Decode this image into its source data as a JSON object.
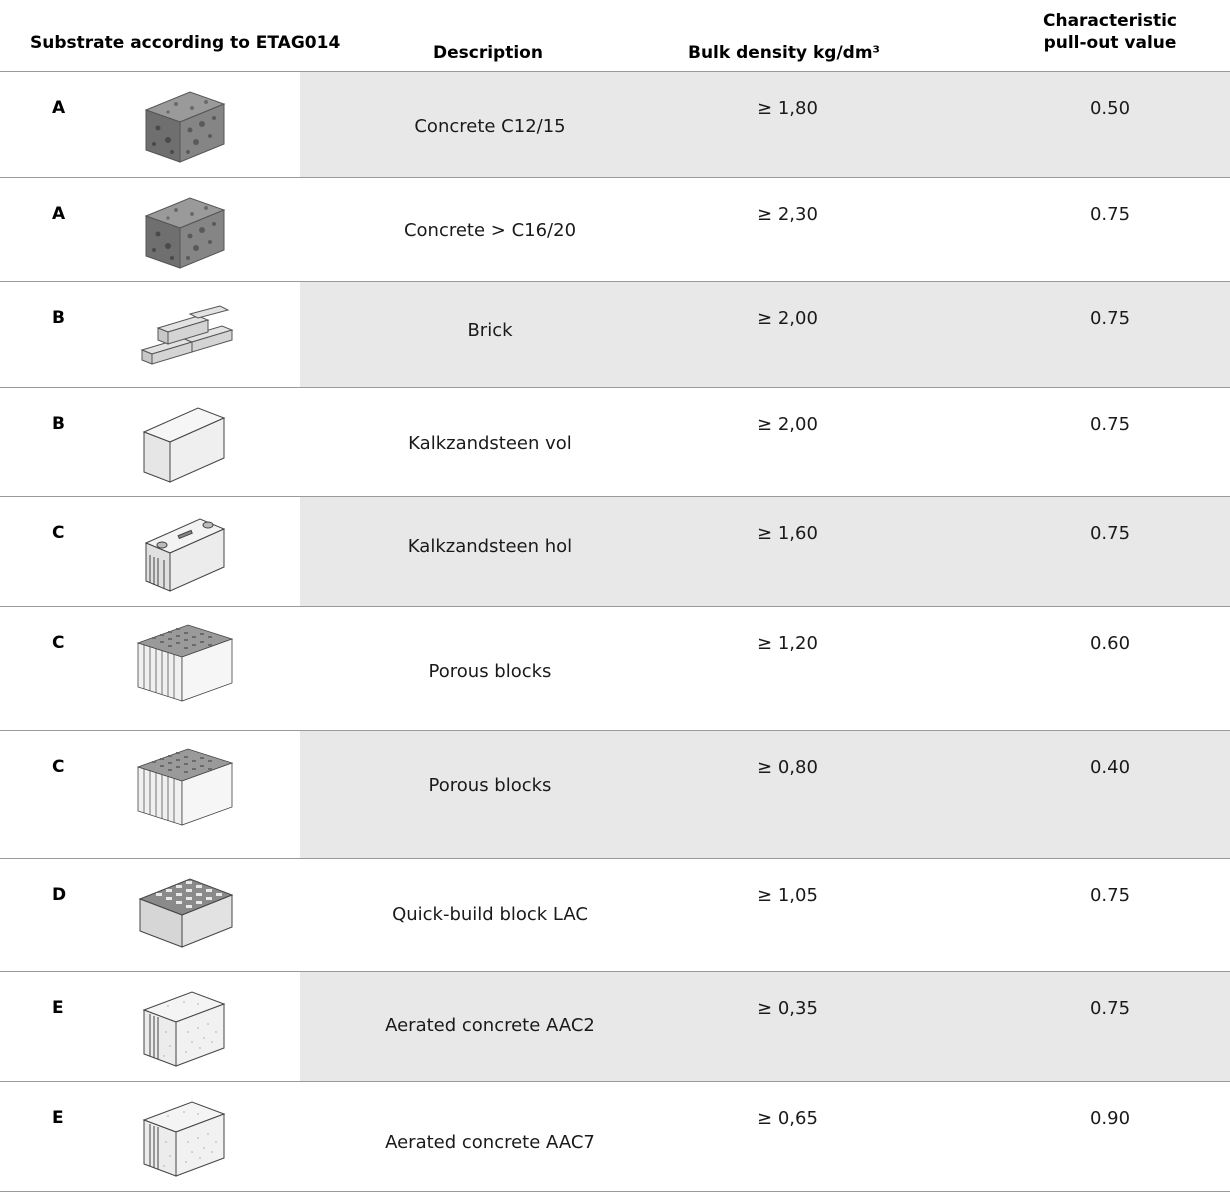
{
  "header": {
    "substrate": "Substrate according to ETAG014",
    "description": "Description",
    "bulk_density": "Bulk density kg/dm³",
    "pullout_line1": "Characteristic",
    "pullout_line2": "pull-out value"
  },
  "rows": [
    {
      "cat": "A",
      "icon": "concrete-block-icon",
      "desc": "Concrete C12/15",
      "bulk": "≥ 1,80",
      "pull": "0.50"
    },
    {
      "cat": "A",
      "icon": "concrete-block-icon",
      "desc": "Concrete > C16/20",
      "bulk": "≥ 2,30",
      "pull": "0.75"
    },
    {
      "cat": "B",
      "icon": "bricks-icon",
      "desc": "Brick",
      "bulk": "≥ 2,00",
      "pull": "0.75"
    },
    {
      "cat": "B",
      "icon": "solid-block-icon",
      "desc": "Kalkzandsteen vol",
      "bulk": "≥ 2,00",
      "pull": "0.75"
    },
    {
      "cat": "C",
      "icon": "hollow-block-icon",
      "desc": "Kalkzandsteen hol",
      "bulk": "≥ 1,60",
      "pull": "0.75"
    },
    {
      "cat": "C",
      "icon": "porous-block-icon",
      "desc": "Porous blocks",
      "bulk": "≥ 1,20",
      "pull": "0.60"
    },
    {
      "cat": "C",
      "icon": "porous-block-icon",
      "desc": "Porous blocks",
      "bulk": "≥ 0,80",
      "pull": "0.40"
    },
    {
      "cat": "D",
      "icon": "quick-build-block-icon",
      "desc": "Quick-build block LAC",
      "bulk": "≥ 1,05",
      "pull": "0.75"
    },
    {
      "cat": "E",
      "icon": "aerated-block-icon",
      "desc": "Aerated concrete AAC2",
      "bulk": "≥ 0,35",
      "pull": "0.75"
    },
    {
      "cat": "E",
      "icon": "aerated-block-icon",
      "desc": "Aerated concrete AAC7",
      "bulk": "≥ 0,65",
      "pull": "0.90"
    }
  ]
}
